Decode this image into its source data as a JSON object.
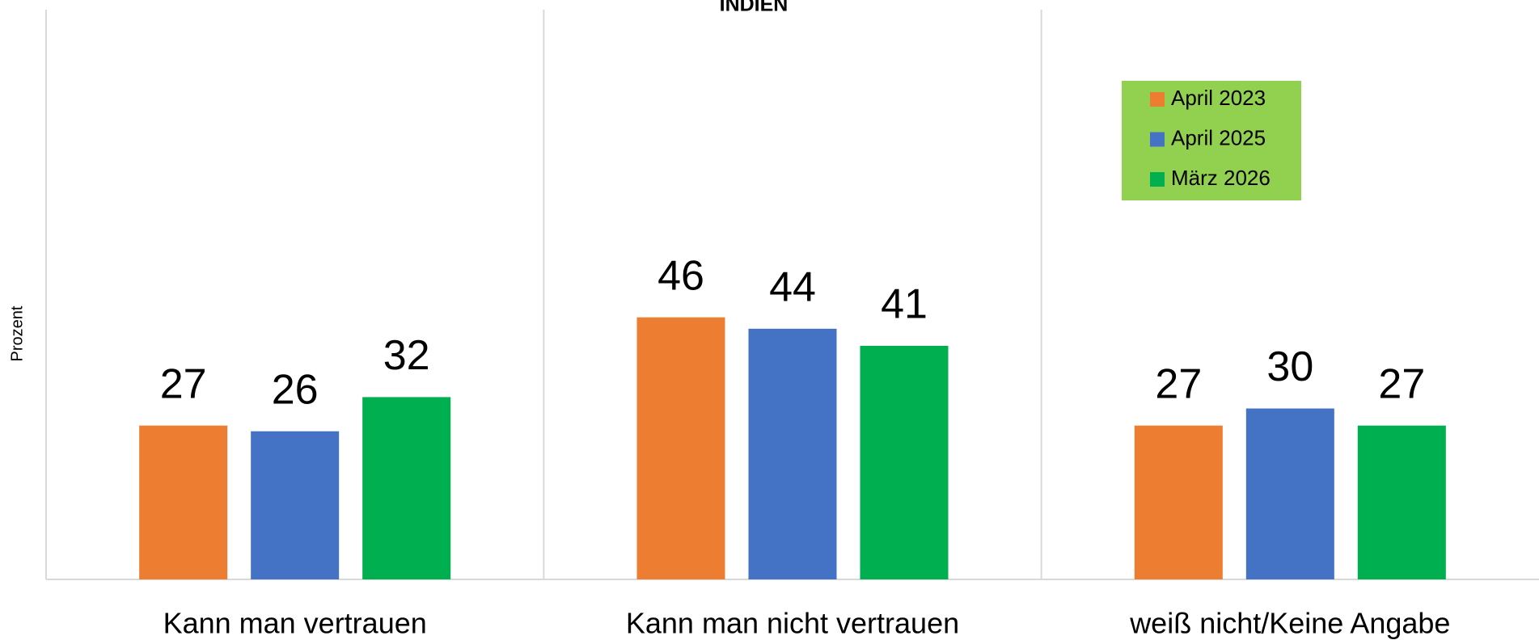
{
  "chart_data": {
    "type": "bar",
    "title": "INDIEN",
    "y_label": "Prozent",
    "categories": [
      "Kann man vertrauen",
      "Kann man nicht vertrauen",
      "weiß nicht/Keine Angabe"
    ],
    "series": [
      {
        "name": "April 2023",
        "color": "#ed7d31",
        "values": [
          27,
          46,
          27
        ]
      },
      {
        "name": "April 2025",
        "color": "#4472c4",
        "values": [
          26,
          44,
          30
        ]
      },
      {
        "name": "März 2026",
        "color": "#00b050",
        "values": [
          32,
          41,
          27
        ]
      }
    ],
    "ylim": [
      0,
      100
    ],
    "legend": "top-right",
    "legend_background": "#92d050"
  }
}
